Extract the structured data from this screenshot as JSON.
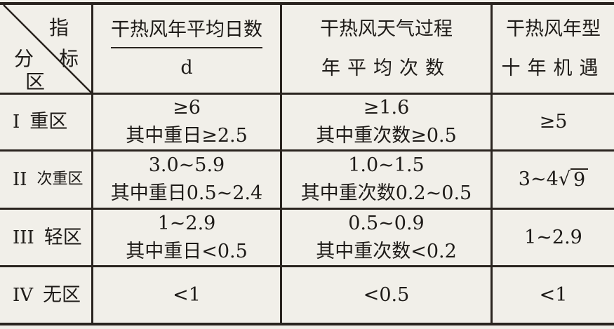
{
  "header": {
    "corner": {
      "top_right": [
        "指",
        "标"
      ],
      "bottom_left": [
        "分",
        "区"
      ]
    },
    "columns": [
      {
        "line1": "干热风年平均日数",
        "line2": "d"
      },
      {
        "line1": "干热风天气过程",
        "line2": "年平均次数"
      },
      {
        "line1": "干热风年型",
        "line2": "十年机遇"
      }
    ]
  },
  "rows": [
    {
      "num": "I",
      "zone": "重区",
      "c1": [
        "≥6",
        "其中重日≥2.5"
      ],
      "c2": [
        "≥1.6",
        "其中重次数≥0.5"
      ],
      "c3": "≥5"
    },
    {
      "num": "II",
      "zone": "次重区",
      "c1": [
        "3.0~5.9",
        "其中重日0.5~2.4"
      ],
      "c2": [
        "1.0~1.5",
        "其中重次数0.2~0.5"
      ],
      "c3": "3~4",
      "c3_radical": "9"
    },
    {
      "num": "III",
      "zone": "轻区",
      "c1": [
        "1~2.9",
        "其中重日<0.5"
      ],
      "c2": [
        "0.5~0.9",
        "其中重次数<0.2"
      ],
      "c3": "1~2.9"
    },
    {
      "num": "IV",
      "zone": "无区",
      "c1": [
        "<1"
      ],
      "c2": [
        "<0.5"
      ],
      "c3": "<1"
    }
  ]
}
